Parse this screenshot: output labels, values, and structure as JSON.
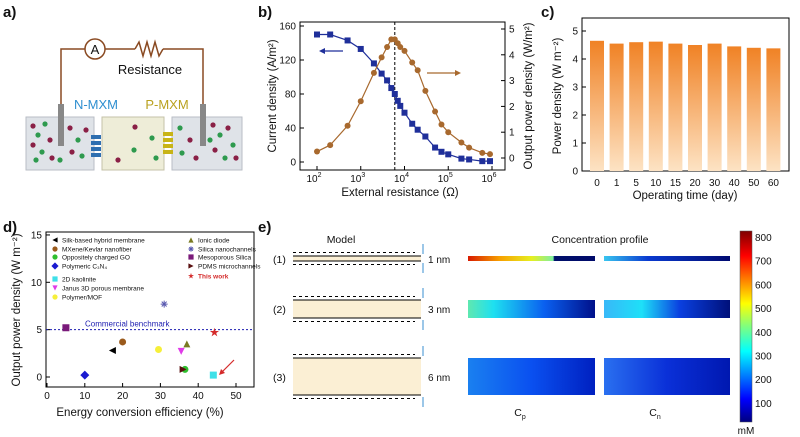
{
  "panels": {
    "a": "a)",
    "b": "b)",
    "c": "c)",
    "d": "d)",
    "e": "e)"
  },
  "panel_a": {
    "ammeter": "A",
    "resistance": "Resistance",
    "n_mxm": "N-MXM",
    "p_mxm": "P-MXM",
    "colors": {
      "n_mxm": "#2f8fd0",
      "p_mxm": "#b9a11f",
      "cation": "#8a2046",
      "anion": "#2e9a4e",
      "wire": "#8a4a22"
    }
  },
  "chart_data": [
    {
      "id": "b",
      "type": "line",
      "xlabel": "External resistance (Ω)",
      "ylabel": "Current density (A/m²)",
      "y2label": "Output power density (W/m²)",
      "xscale": "log",
      "x_tick_base": "10",
      "x_tick_exponents": [
        "2",
        "3",
        "4",
        "5",
        "6"
      ],
      "ylim": [
        0,
        160
      ],
      "y_ticks": [
        0,
        40,
        80,
        120,
        160
      ],
      "y2lim": [
        0,
        5
      ],
      "y2_ticks": [
        0,
        1,
        2,
        3,
        4,
        5
      ],
      "vline_x": 6000,
      "x": [
        100,
        200,
        500,
        1000,
        2000,
        3000,
        4000,
        5000,
        6000,
        7000,
        8000,
        10000,
        15000,
        20000,
        30000,
        50000,
        70000,
        100000,
        200000,
        300000,
        600000,
        900000
      ],
      "series": [
        {
          "name": "Current density",
          "axis": "left",
          "color": "#1f2f9a",
          "marker": "square",
          "values": [
            150,
            150,
            143,
            133,
            116,
            104,
            96,
            87,
            80,
            72,
            66,
            58,
            45,
            38,
            30,
            17,
            12,
            9,
            4,
            3,
            1,
            1
          ]
        },
        {
          "name": "Output power density",
          "axis": "right",
          "color": "#a8692e",
          "marker": "circle",
          "values": [
            0.25,
            0.5,
            1.25,
            2.2,
            3.3,
            3.9,
            4.3,
            4.6,
            4.6,
            4.45,
            4.3,
            4.15,
            3.7,
            3.4,
            2.6,
            1.8,
            1.3,
            1.0,
            0.6,
            0.4,
            0.2,
            0.15
          ]
        }
      ]
    },
    {
      "id": "c",
      "type": "bar",
      "xlabel": "Operating time (day)",
      "ylabel": "Power density (W m⁻²)",
      "ylim": [
        0,
        5
      ],
      "y_ticks": [
        0,
        1,
        2,
        3,
        4,
        5
      ],
      "categories": [
        "0",
        "1",
        "5",
        "10",
        "15",
        "20",
        "30",
        "40",
        "50",
        "60"
      ],
      "values": [
        4.65,
        4.55,
        4.6,
        4.62,
        4.55,
        4.5,
        4.55,
        4.45,
        4.4,
        4.38
      ],
      "color": "#f08a2a"
    },
    {
      "id": "d",
      "type": "scatter",
      "xlabel": "Energy conversion efficiency (%)",
      "ylabel": "Output power density (W m⁻²)",
      "xlim": [
        0,
        55
      ],
      "x_ticks": [
        0,
        10,
        20,
        30,
        40,
        50
      ],
      "ylim": [
        -1,
        15
      ],
      "y_ticks": [
        0,
        5,
        10,
        15
      ],
      "benchmark": {
        "label": "Commercial benchmark",
        "value": 5,
        "color": "#1d1db0"
      },
      "legend_placement": "top",
      "series": [
        {
          "name": "Silk-based hybrid membrane",
          "marker": "triangle-left",
          "color": "#000000",
          "x": 17.3,
          "y": 2.8
        },
        {
          "name": "MXene/Kevlar nanofiber",
          "marker": "circle",
          "color": "#9a5a1c",
          "x": 20,
          "y": 3.7
        },
        {
          "name": "Oppositely charged GO",
          "marker": "circle",
          "color": "#2fbf2f",
          "x": 36.5,
          "y": 0.8
        },
        {
          "name": "Polymeric C₃N₄",
          "marker": "diamond",
          "color": "#1a1ad0",
          "x": 10,
          "y": 0.2
        },
        {
          "name": "2D kaolinite",
          "marker": "square",
          "color": "#3fe0e8",
          "x": 44,
          "y": 0.2
        },
        {
          "name": "Janus 3D porous membrane",
          "marker": "triangle-down",
          "color": "#e03be8",
          "x": 35.5,
          "y": 2.7
        },
        {
          "name": "Polymer/MOF",
          "marker": "hexagon",
          "color": "#f6ef3a",
          "x": 29.5,
          "y": 2.9
        },
        {
          "name": "Ionic diode",
          "marker": "triangle-up",
          "color": "#7a7a22",
          "x": 37,
          "y": 3.5
        },
        {
          "name": "Silica nanochannels",
          "marker": "asterisk",
          "color": "#5a5ab0",
          "x": 31,
          "y": 7.7
        },
        {
          "name": "Mesoporous Silica",
          "marker": "square",
          "color": "#7a1a7a",
          "x": 5,
          "y": 5.2
        },
        {
          "name": "PDMS microchannels",
          "marker": "triangle-right",
          "color": "#5a1010",
          "x": 36,
          "y": 0.8
        },
        {
          "name": "This work",
          "marker": "star",
          "color": "#d42a2a",
          "x": 44.3,
          "y": 4.7
        }
      ]
    }
  ],
  "panel_e": {
    "model_title": "Model",
    "profile_title": "Concentration profile",
    "rows": [
      {
        "label": "(1)",
        "width": "1 nm"
      },
      {
        "label": "(2)",
        "width": "3 nm"
      },
      {
        "label": "(3)",
        "width": "6 nm"
      }
    ],
    "cp_label": "C",
    "cp_sub": "p",
    "cn_label": "C",
    "cn_sub": "n",
    "colorbar": {
      "ticks": [
        "800",
        "700",
        "600",
        "500",
        "400",
        "300",
        "200",
        "100"
      ],
      "unit": "mM",
      "range": [
        0,
        800
      ]
    }
  }
}
